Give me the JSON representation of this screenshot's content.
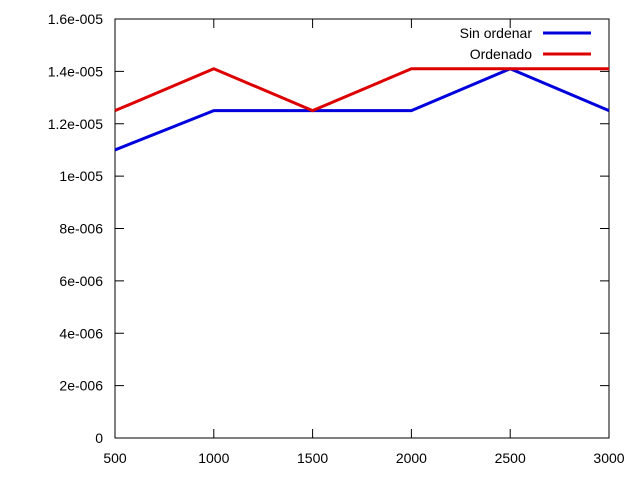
{
  "chart_data": {
    "type": "line",
    "title": "",
    "xlabel": "",
    "ylabel": "",
    "x": [
      500,
      1000,
      1500,
      2000,
      2500,
      3000
    ],
    "xlim": [
      500,
      3000
    ],
    "ylim": [
      0,
      1.6e-05
    ],
    "x_ticks": [
      500,
      1000,
      1500,
      2000,
      2500,
      3000
    ],
    "x_tick_labels": [
      "500",
      "1000",
      "1500",
      "2000",
      "2500",
      "3000"
    ],
    "y_ticks": [
      0,
      2e-06,
      4e-06,
      6e-06,
      8e-06,
      1e-05,
      1.2e-05,
      1.4e-05,
      1.6e-05
    ],
    "y_tick_labels": [
      "0",
      "2e-006",
      "4e-006",
      "6e-006",
      "8e-006",
      "1e-005",
      "1.2e-005",
      "1.4e-005",
      "1.6e-005"
    ],
    "grid": false,
    "legend_position": "top-right",
    "series": [
      {
        "name": "Sin ordenar",
        "color": "#0000dd",
        "values": [
          1.1e-05,
          1.25e-05,
          1.25e-05,
          1.25e-05,
          1.41e-05,
          1.25e-05
        ]
      },
      {
        "name": "Ordenado",
        "color": "#dd0000",
        "values": [
          1.25e-05,
          1.41e-05,
          1.25e-05,
          1.41e-05,
          1.41e-05,
          1.41e-05
        ]
      }
    ]
  }
}
